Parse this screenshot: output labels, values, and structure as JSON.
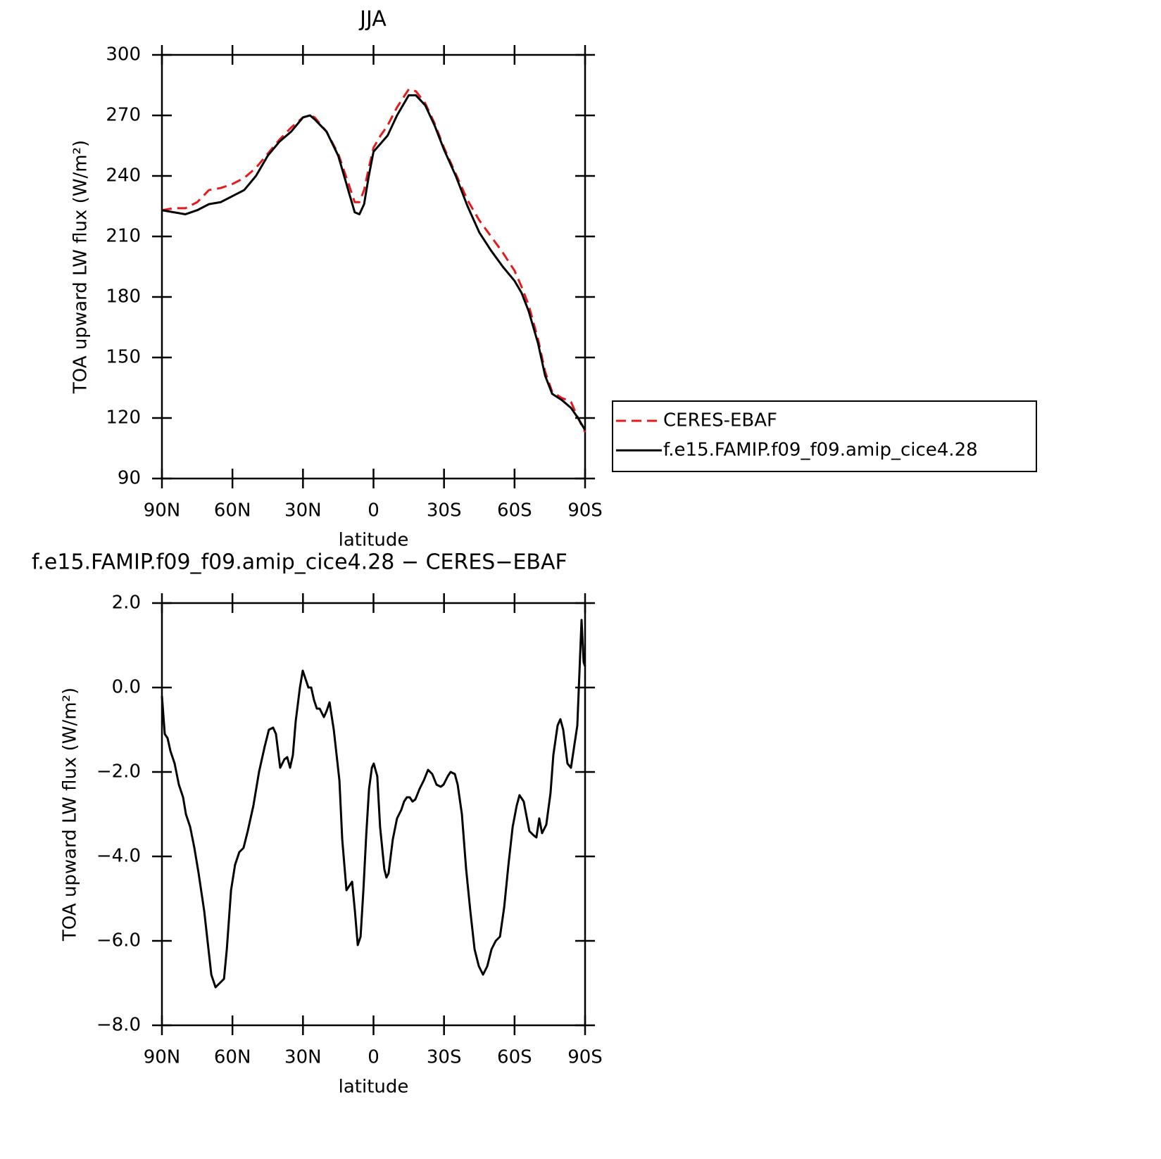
{
  "chart_data": [
    {
      "type": "line",
      "title": "JJA",
      "xlabel": "latitude",
      "ylabel": "TOA upward LW flux (W/m²)",
      "x": [
        90,
        85,
        80,
        75,
        70,
        65,
        60,
        55,
        50,
        45,
        40,
        35,
        30,
        27,
        25,
        20,
        15,
        10,
        8,
        6,
        4,
        2,
        0,
        -3,
        -6,
        -10,
        -15,
        -18,
        -22,
        -26,
        -30,
        -35,
        -40,
        -45,
        -50,
        -55,
        -60,
        -63,
        -66,
        -70,
        -73,
        -76,
        -80,
        -84,
        -87,
        -90
      ],
      "series": [
        {
          "name": "CERES-EBAF",
          "color": "#e41a1c",
          "style": "dashed",
          "values": [
            223,
            224,
            224,
            227,
            233,
            234,
            236,
            239,
            244,
            251,
            258,
            264,
            269,
            270,
            269,
            262,
            251,
            234,
            227,
            227,
            233,
            244,
            254,
            260,
            265,
            274,
            283,
            282,
            276,
            266,
            254,
            241,
            228,
            218,
            210,
            202,
            193,
            185,
            176,
            159,
            143,
            133,
            130,
            128,
            120,
            113
          ]
        },
        {
          "name": "f.e15.FAMIP.f09_f09.amip_cice4.28",
          "color": "#000000",
          "style": "solid",
          "values": [
            223,
            222,
            221,
            223,
            226,
            227,
            230,
            233,
            240,
            250,
            257,
            262,
            269,
            270,
            268,
            262,
            250,
            230,
            222,
            221,
            226,
            240,
            252,
            256,
            260,
            270,
            280,
            280,
            275,
            265,
            253,
            240,
            225,
            212,
            203,
            195,
            188,
            182,
            173,
            157,
            141,
            132,
            129,
            125,
            120,
            114
          ]
        }
      ],
      "xlim": [
        90,
        -90
      ],
      "xticks": [
        {
          "value": 90,
          "label": "90N"
        },
        {
          "value": 60,
          "label": "60N"
        },
        {
          "value": 30,
          "label": "30N"
        },
        0,
        {
          "value": -30,
          "label": "30S"
        },
        {
          "value": -60,
          "label": "60S"
        },
        {
          "value": -90,
          "label": "90S"
        }
      ],
      "ylim": [
        90,
        300
      ],
      "yticks": [
        90,
        120,
        150,
        180,
        210,
        240,
        270,
        300
      ],
      "legend": "right"
    },
    {
      "type": "line",
      "title": "f.e15.FAMIP.f09_f09.amip_cice4.28 − CERES−EBAF",
      "xlabel": "latitude",
      "ylabel": "TOA upward LW flux (W/m²)",
      "x": [
        90,
        88.8,
        87.6,
        86.4,
        84.6,
        82.8,
        81.0,
        79.8,
        78.0,
        76.2,
        74.4,
        72.0,
        70.2,
        69.0,
        67.2,
        65.4,
        63.6,
        62.4,
        60.6,
        58.9,
        57.1,
        55.3,
        53.5,
        51.1,
        48.7,
        46.3,
        44.5,
        42.7,
        41.5,
        39.7,
        37.9,
        36.7,
        35.5,
        34.3,
        33.1,
        31.3,
        30.1,
        28.9,
        27.7,
        26.5,
        25.3,
        24.1,
        22.9,
        21.1,
        19.9,
        18.7,
        16.9,
        14.5,
        13.3,
        11.5,
        10.3,
        9.1,
        7.9,
        6.7,
        5.5,
        4.3,
        3.1,
        1.9,
        0.7,
        -0.1,
        -1.6,
        -2.8,
        -4.6,
        -5.5,
        -6.4,
        -8.2,
        -10.0,
        -11.8,
        -13.0,
        -14.2,
        -15.4,
        -16.6,
        -17.8,
        -19.6,
        -21.4,
        -23.2,
        -25.0,
        -26.8,
        -28.6,
        -29.8,
        -31.6,
        -32.8,
        -34.6,
        -35.8,
        -37.6,
        -39.4,
        -41.2,
        -43.0,
        -44.8,
        -46.6,
        -48.4,
        -50.2,
        -52.0,
        -53.8,
        -55.6,
        -57.4,
        -59.2,
        -60.9,
        -62.1,
        -63.9,
        -66.3,
        -68.1,
        -69.3,
        -70.5,
        -71.7,
        -73.5,
        -75.3,
        -76.5,
        -78.3,
        -79.5,
        -80.7,
        -82.5,
        -84.0,
        -86.7,
        -88.5,
        -89.4,
        -90
      ],
      "values": [
        -0.2,
        -1.1,
        -1.2,
        -1.5,
        -1.8,
        -2.3,
        -2.6,
        -3.0,
        -3.3,
        -3.8,
        -4.4,
        -5.3,
        -6.2,
        -6.8,
        -7.1,
        -7.0,
        -6.9,
        -6.2,
        -4.8,
        -4.2,
        -3.9,
        -3.8,
        -3.4,
        -2.8,
        -2.0,
        -1.4,
        -1.0,
        -0.95,
        -1.1,
        -1.9,
        -1.7,
        -1.65,
        -1.9,
        -1.6,
        -0.8,
        0.0,
        0.4,
        0.2,
        0.0,
        0.0,
        -0.3,
        -0.5,
        -0.5,
        -0.7,
        -0.55,
        -0.35,
        -1.0,
        -2.2,
        -3.6,
        -4.8,
        -4.7,
        -4.6,
        -5.3,
        -6.1,
        -5.9,
        -4.8,
        -3.5,
        -2.4,
        -1.9,
        -1.8,
        -2.1,
        -3.3,
        -4.3,
        -4.5,
        -4.4,
        -3.6,
        -3.1,
        -2.9,
        -2.7,
        -2.6,
        -2.6,
        -2.7,
        -2.65,
        -2.4,
        -2.2,
        -1.95,
        -2.05,
        -2.3,
        -2.35,
        -2.3,
        -2.1,
        -2.0,
        -2.05,
        -2.3,
        -3.0,
        -4.3,
        -5.3,
        -6.2,
        -6.6,
        -6.8,
        -6.6,
        -6.2,
        -6.0,
        -5.9,
        -5.2,
        -4.2,
        -3.3,
        -2.8,
        -2.55,
        -2.7,
        -3.4,
        -3.5,
        -3.55,
        -3.1,
        -3.45,
        -3.25,
        -2.5,
        -1.6,
        -0.9,
        -0.75,
        -1.0,
        -1.8,
        -1.9,
        -0.9,
        1.6,
        0.6,
        0.5
      ],
      "color": "#000000",
      "xlim": [
        90,
        -90
      ],
      "xticks": [
        {
          "value": 90,
          "label": "90N"
        },
        {
          "value": 60,
          "label": "60N"
        },
        {
          "value": 30,
          "label": "30N"
        },
        0,
        {
          "value": -30,
          "label": "30S"
        },
        {
          "value": -60,
          "label": "60S"
        },
        {
          "value": -90,
          "label": "90S"
        }
      ],
      "ylim": [
        -8,
        2
      ],
      "yticks": [
        {
          "value": -8,
          "label": "−8.0"
        },
        {
          "value": -6,
          "label": "−6.0"
        },
        {
          "value": -4,
          "label": "−4.0"
        },
        {
          "value": -2,
          "label": "−2.0"
        },
        {
          "value": 0,
          "label": "0.0"
        },
        {
          "value": 2,
          "label": "2.0"
        }
      ]
    }
  ]
}
